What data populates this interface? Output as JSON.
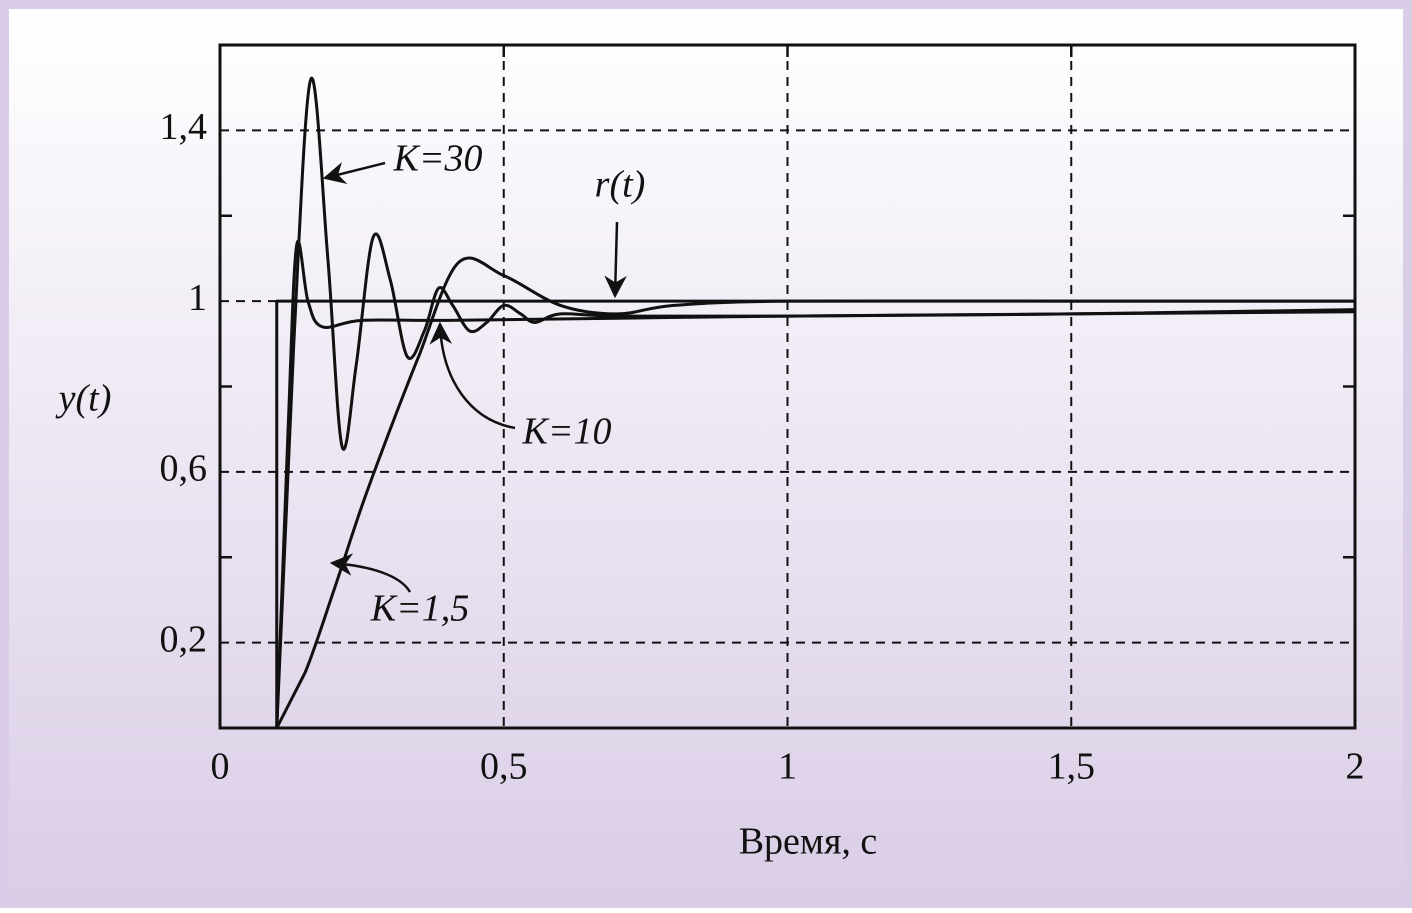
{
  "chart_data": {
    "type": "line",
    "xlabel": "Время, с",
    "ylabel": "y(t)",
    "xlim": [
      0,
      2
    ],
    "ylim": [
      0,
      1.6
    ],
    "xticks": [
      0,
      {
        "value": 0.5,
        "label": "0,5"
      },
      1,
      {
        "value": 1.5,
        "label": "1,5"
      },
      2
    ],
    "yticks": [
      {
        "value": 0.2,
        "label": "0,2"
      },
      {
        "value": 0.6,
        "label": "0,6"
      },
      1,
      {
        "value": 1.4,
        "label": "1,4"
      }
    ],
    "yminor": [
      0.4,
      0.8,
      1.2
    ],
    "grid": true,
    "series": [
      {
        "name": "K=30",
        "color": "#111111",
        "x": [
          0.1,
          0.13,
          0.16,
          0.19,
          0.215,
          0.24,
          0.27,
          0.3,
          0.33,
          0.36,
          0.385,
          0.41,
          0.44,
          0.47,
          0.5,
          0.53,
          0.555,
          0.6,
          0.7,
          1,
          1.5,
          2
        ],
        "values": [
          0,
          0.9,
          1.52,
          1.1,
          0.66,
          0.85,
          1.15,
          1.05,
          0.87,
          0.93,
          1.03,
          0.99,
          0.93,
          0.95,
          0.99,
          0.97,
          0.95,
          0.97,
          0.965,
          0.965,
          0.97,
          0.98
        ]
      },
      {
        "name": "K=10",
        "color": "#111111",
        "x": [
          0.1,
          0.12,
          0.135,
          0.155,
          0.18,
          0.25,
          0.4,
          0.7,
          1,
          1.5,
          2
        ],
        "values": [
          0,
          0.7,
          1.13,
          1.0,
          0.94,
          0.955,
          0.955,
          0.96,
          0.965,
          0.97,
          0.975
        ]
      },
      {
        "name": "K=1,5",
        "color": "#111111",
        "x": [
          0.1,
          0.15,
          0.2,
          0.25,
          0.3,
          0.35,
          0.42,
          0.5,
          0.6,
          0.7,
          0.8,
          1,
          1.5,
          2
        ],
        "values": [
          0,
          0.13,
          0.32,
          0.52,
          0.7,
          0.87,
          1.09,
          1.06,
          0.99,
          0.97,
          0.99,
          1.0,
          1.0,
          1.0
        ]
      },
      {
        "name": "r(t)",
        "color": "#111111",
        "x": [
          0,
          0.1,
          0.1,
          2
        ],
        "values": [
          0,
          0,
          1,
          1
        ]
      }
    ]
  }
}
